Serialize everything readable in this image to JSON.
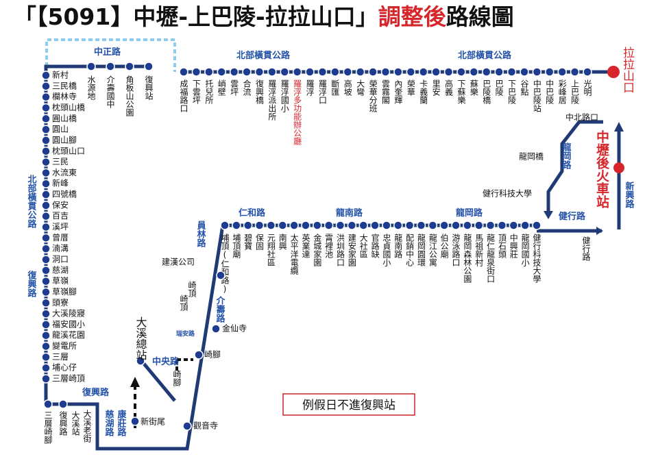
{
  "header": {
    "title_main": "「【5091】中壢-上巴陵-拉拉山口」",
    "title_highlight": "調整後",
    "title_end": "路線圖"
  },
  "terminal": "拉拉山口",
  "top_stops": [
    "成福路口",
    "下雲坪",
    "托兒所",
    "峭壁",
    "雲坪",
    "合流",
    "復興橋",
    "羅浮派出所",
    "羅浮國小",
    "羅浮多功能辦公廳",
    "羅浮",
    "羅浮口",
    "斷匯",
    "高坡",
    "大彎",
    "榮華分班",
    "雲霧閣",
    "內奎輝",
    "榮華",
    "卡義蘭",
    "里安",
    "高義",
    "下蘇樂",
    "蘇樂",
    "巴陵橋",
    "巴陵",
    "下巴陵",
    "谷點",
    "中巴陵站",
    "中巴陵",
    "彩峰居",
    "上巴陵",
    "光明"
  ],
  "zhongzheng_stops": [
    "水源地",
    "介壽國中",
    "角板山公園",
    "復興站"
  ],
  "left_stops": [
    "新村",
    "三民橋",
    "欄林寺",
    "枕頭山橋",
    "圓山橋",
    "圓山",
    "圓山腳",
    "枕頭山口",
    "三民",
    "水流東",
    "新峰",
    "四號橋",
    "保安",
    "百吉",
    "溪坪",
    "曾厝",
    "湳溝",
    "洞口",
    "慈湖",
    "草嶺",
    "草嶺腳",
    "頭寮",
    "大溪陵寢",
    "福安國小",
    "龍溪花園",
    "變電所",
    "三層",
    "埔心仔",
    "三層崎頂"
  ],
  "middle_stops": [
    "埔頂(仁和路)",
    "埔頂廟",
    "碧寶",
    "保固",
    "元翔社區",
    "南興",
    "太平洋電纜",
    "英業達",
    "金城家園",
    "霄裡池",
    "洪圳路口",
    "建安家園",
    "大社區",
    "官路缺",
    "忠貞國小",
    "龍南路",
    "配銷中心",
    "龍岡圓環",
    "龍江公寓",
    "伯公廟",
    "游泳路口",
    "龍岡森林公園",
    "馬祖新村",
    "龍仁龍泉街口",
    "頂石頭",
    "中興莊",
    "龍岡國小",
    "健行科技大學"
  ],
  "other_stops": [
    "三層崎腳",
    "復興路",
    "大溪站",
    "大溪老街",
    "新街尾",
    "觀音寺",
    "崎腳",
    "金仙寺",
    "崎頂",
    "崎頂",
    "建漢公司",
    "大溪總站",
    "崎腳",
    "健行路",
    "中北路口",
    "龍岡橋",
    "健行科技大學"
  ],
  "roads": [
    "北部橫貫公路",
    "北部橫貫公路",
    "中正路",
    "北部橫貫公路",
    "復興路",
    "復興路",
    "仁和路",
    "龍南路",
    "龍岡路",
    "健行路",
    "員林路",
    "介壽路",
    "中央路",
    "瑞安路",
    "慈湖路",
    "康莊路",
    "龍岡路",
    "新興路"
  ],
  "station": "中壢後火車站",
  "note": "例假日不進復興站"
}
